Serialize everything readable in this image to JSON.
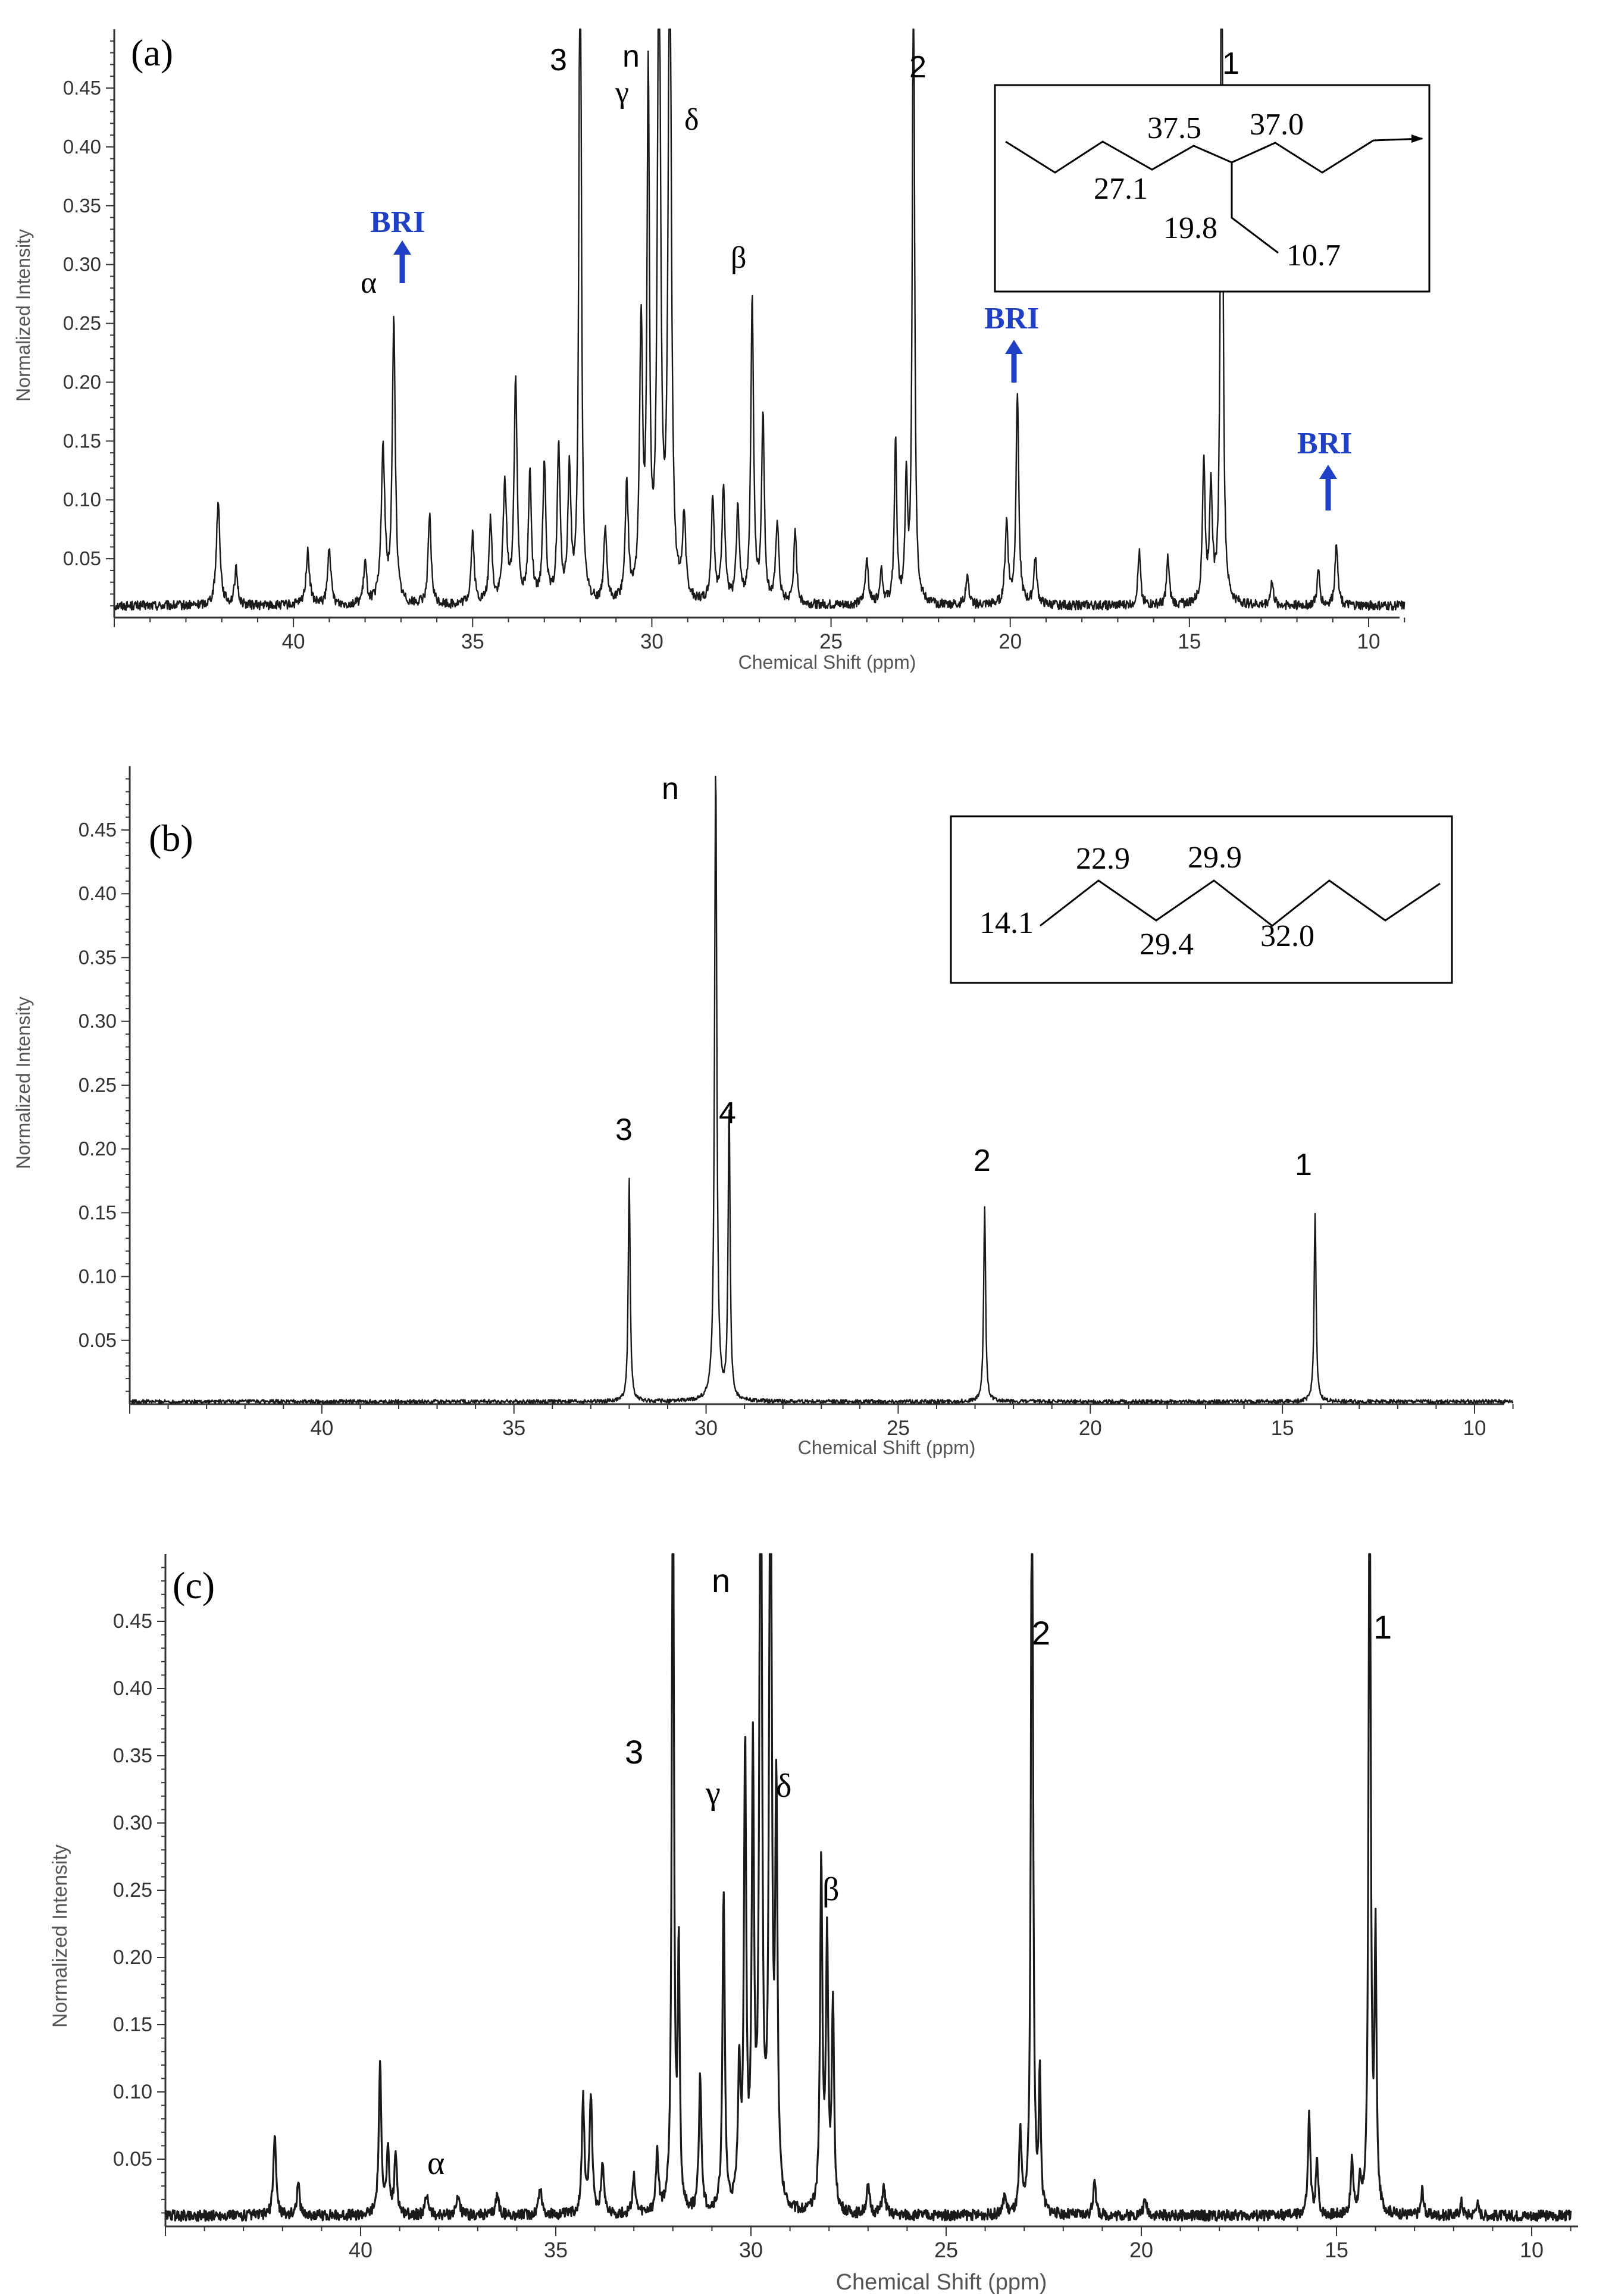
{
  "colors": {
    "spectrum": "#1a1a1a",
    "axis": "#333333",
    "bri": "#1f3fc4",
    "box": "#000000"
  },
  "chart_data": [
    {
      "type": "line",
      "panel": "(a)",
      "xlabel": "Chemical Shift (ppm)",
      "ylabel": "Normalized Intensity",
      "xlim": [
        45,
        9
      ],
      "ylim": [
        0,
        0.5
      ],
      "x_reversed": true,
      "x_ticks": [
        "40",
        "35",
        "30",
        "25",
        "20",
        "15",
        "10"
      ],
      "y_ticks": [
        "0.05",
        "0.10",
        "0.15",
        "0.20",
        "0.25",
        "0.30",
        "0.35",
        "0.40",
        "0.45"
      ],
      "baseline": 0.01,
      "peaks": [
        {
          "x": 42.1,
          "y": 0.088,
          "w": 0.06
        },
        {
          "x": 41.6,
          "y": 0.03,
          "w": 0.05
        },
        {
          "x": 39.6,
          "y": 0.045,
          "w": 0.06
        },
        {
          "x": 39.0,
          "y": 0.05,
          "w": 0.05
        },
        {
          "x": 38.0,
          "y": 0.035,
          "w": 0.05
        },
        {
          "x": 37.5,
          "y": 0.13,
          "w": 0.06
        },
        {
          "x": 37.2,
          "y": 0.24,
          "w": 0.05
        },
        {
          "x": 36.2,
          "y": 0.075,
          "w": 0.05
        },
        {
          "x": 35.0,
          "y": 0.06,
          "w": 0.05
        },
        {
          "x": 34.5,
          "y": 0.07,
          "w": 0.05
        },
        {
          "x": 34.1,
          "y": 0.1,
          "w": 0.06
        },
        {
          "x": 33.8,
          "y": 0.19,
          "w": 0.05
        },
        {
          "x": 33.4,
          "y": 0.11,
          "w": 0.05
        },
        {
          "x": 33.0,
          "y": 0.12,
          "w": 0.05
        },
        {
          "x": 32.6,
          "y": 0.13,
          "w": 0.05
        },
        {
          "x": 32.3,
          "y": 0.11,
          "w": 0.05
        },
        {
          "x": 32.0,
          "y": 0.7,
          "w": 0.035
        },
        {
          "x": 31.3,
          "y": 0.06,
          "w": 0.05
        },
        {
          "x": 30.7,
          "y": 0.1,
          "w": 0.05
        },
        {
          "x": 30.3,
          "y": 0.23,
          "w": 0.05
        },
        {
          "x": 30.1,
          "y": 0.44,
          "w": 0.04
        },
        {
          "x": 29.8,
          "y": 0.6,
          "w": 0.05
        },
        {
          "x": 29.5,
          "y": 0.6,
          "w": 0.05
        },
        {
          "x": 29.1,
          "y": 0.07,
          "w": 0.05
        },
        {
          "x": 28.3,
          "y": 0.09,
          "w": 0.05
        },
        {
          "x": 28.0,
          "y": 0.1,
          "w": 0.05
        },
        {
          "x": 27.6,
          "y": 0.08,
          "w": 0.05
        },
        {
          "x": 27.2,
          "y": 0.26,
          "w": 0.045
        },
        {
          "x": 26.9,
          "y": 0.16,
          "w": 0.045
        },
        {
          "x": 26.5,
          "y": 0.07,
          "w": 0.05
        },
        {
          "x": 26.0,
          "y": 0.06,
          "w": 0.05
        },
        {
          "x": 24.0,
          "y": 0.04,
          "w": 0.05
        },
        {
          "x": 23.6,
          "y": 0.03,
          "w": 0.05
        },
        {
          "x": 23.2,
          "y": 0.14,
          "w": 0.04
        },
        {
          "x": 22.9,
          "y": 0.1,
          "w": 0.04
        },
        {
          "x": 22.7,
          "y": 0.6,
          "w": 0.035
        },
        {
          "x": 21.2,
          "y": 0.025,
          "w": 0.05
        },
        {
          "x": 20.1,
          "y": 0.07,
          "w": 0.05
        },
        {
          "x": 19.8,
          "y": 0.18,
          "w": 0.045
        },
        {
          "x": 19.3,
          "y": 0.04,
          "w": 0.05
        },
        {
          "x": 16.4,
          "y": 0.045,
          "w": 0.045
        },
        {
          "x": 15.6,
          "y": 0.04,
          "w": 0.045
        },
        {
          "x": 14.6,
          "y": 0.12,
          "w": 0.045
        },
        {
          "x": 14.4,
          "y": 0.1,
          "w": 0.045
        },
        {
          "x": 14.1,
          "y": 0.7,
          "w": 0.035
        },
        {
          "x": 12.7,
          "y": 0.02,
          "w": 0.05
        },
        {
          "x": 11.4,
          "y": 0.03,
          "w": 0.045
        },
        {
          "x": 10.9,
          "y": 0.055,
          "w": 0.045
        }
      ],
      "annotations": [
        {
          "text": "(a)",
          "kind": "panel"
        },
        {
          "text": "3",
          "kind": "peak",
          "x": 32.6,
          "y": 0.468
        },
        {
          "text": "n",
          "kind": "peak",
          "x": 30.1,
          "y": 0.468
        },
        {
          "text": "γ",
          "kind": "greek",
          "x": 30.5,
          "y": 0.437
        },
        {
          "text": "δ",
          "kind": "greek",
          "x": 28.7,
          "y": 0.415
        },
        {
          "text": "2",
          "kind": "peak",
          "x": 22.4,
          "y": 0.455
        },
        {
          "text": "1",
          "kind": "peak",
          "x": 13.6,
          "y": 0.462
        },
        {
          "text": "α",
          "kind": "greek",
          "x": 38.5,
          "y": 0.265
        },
        {
          "text": "β",
          "kind": "greek",
          "x": 28.0,
          "y": 0.29
        },
        {
          "text": "BRI",
          "kind": "bri",
          "x": 37.2,
          "y": 0.325,
          "arrow_to": 0.28
        },
        {
          "text": "BRI",
          "kind": "bri",
          "x": 19.8,
          "y": 0.252,
          "arrow_to": 0.195
        },
        {
          "text": "BRI",
          "kind": "bri",
          "x": 10.9,
          "y": 0.135,
          "arrow_to": 0.088
        }
      ],
      "structure_labels": [
        "37.5",
        "37.0",
        "27.1",
        "19.8",
        "10.7"
      ]
    },
    {
      "type": "line",
      "panel": "(b)",
      "xlabel": "Chemical Shift (ppm)",
      "ylabel": "Normalized Intensity",
      "xlim": [
        45,
        9
      ],
      "ylim": [
        0,
        0.5
      ],
      "x_reversed": true,
      "x_ticks": [
        "40",
        "35",
        "30",
        "25",
        "20",
        "15",
        "10"
      ],
      "y_ticks": [
        "0.05",
        "0.10",
        "0.15",
        "0.20",
        "0.25",
        "0.30",
        "0.35",
        "0.40",
        "0.45"
      ],
      "baseline": 0.002,
      "peaks": [
        {
          "x": 32.0,
          "y": 0.175,
          "w": 0.03
        },
        {
          "x": 29.75,
          "y": 0.5,
          "w": 0.035
        },
        {
          "x": 29.4,
          "y": 0.23,
          "w": 0.03
        },
        {
          "x": 22.75,
          "y": 0.153,
          "w": 0.03
        },
        {
          "x": 14.15,
          "y": 0.148,
          "w": 0.03
        }
      ],
      "annotations": [
        {
          "text": "(b)",
          "kind": "panel"
        },
        {
          "text": "n",
          "kind": "peak",
          "x": 30.7,
          "y": 0.47
        },
        {
          "text": "3",
          "kind": "peak",
          "x": 32.0,
          "y": 0.2
        },
        {
          "text": "4",
          "kind": "peak",
          "x": 29.1,
          "y": 0.215
        },
        {
          "text": "2",
          "kind": "peak",
          "x": 22.75,
          "y": 0.178
        },
        {
          "text": "1",
          "kind": "peak",
          "x": 14.3,
          "y": 0.172
        }
      ],
      "structure_labels": [
        "22.9",
        "29.9",
        "14.1",
        "29.4",
        "32.0"
      ]
    },
    {
      "type": "line",
      "panel": "(c)",
      "xlabel": "Chemical Shift (ppm)",
      "ylabel": "Normalized Intensity",
      "xlim": [
        45,
        9
      ],
      "ylim": [
        0,
        0.5
      ],
      "x_reversed": true,
      "x_ticks": [
        "40",
        "35",
        "30",
        "25",
        "20",
        "15",
        "10"
      ],
      "y_ticks": [
        "0.05",
        "0.10",
        "0.15",
        "0.20",
        "0.25",
        "0.30",
        "0.35",
        "0.40",
        "0.45"
      ],
      "baseline": 0.008,
      "peaks": [
        {
          "x": 42.2,
          "y": 0.062,
          "w": 0.04
        },
        {
          "x": 41.6,
          "y": 0.025,
          "w": 0.04
        },
        {
          "x": 39.5,
          "y": 0.11,
          "w": 0.04
        },
        {
          "x": 39.3,
          "y": 0.045,
          "w": 0.04
        },
        {
          "x": 39.1,
          "y": 0.045,
          "w": 0.04
        },
        {
          "x": 38.3,
          "y": 0.015,
          "w": 0.05
        },
        {
          "x": 37.5,
          "y": 0.015,
          "w": 0.05
        },
        {
          "x": 36.5,
          "y": 0.015,
          "w": 0.05
        },
        {
          "x": 35.4,
          "y": 0.02,
          "w": 0.05
        },
        {
          "x": 34.3,
          "y": 0.085,
          "w": 0.04
        },
        {
          "x": 34.1,
          "y": 0.09,
          "w": 0.04
        },
        {
          "x": 33.8,
          "y": 0.035,
          "w": 0.05
        },
        {
          "x": 33.0,
          "y": 0.03,
          "w": 0.04
        },
        {
          "x": 32.4,
          "y": 0.045,
          "w": 0.04
        },
        {
          "x": 32.0,
          "y": 0.65,
          "w": 0.03
        },
        {
          "x": 31.85,
          "y": 0.19,
          "w": 0.03
        },
        {
          "x": 31.3,
          "y": 0.1,
          "w": 0.04
        },
        {
          "x": 30.7,
          "y": 0.24,
          "w": 0.035
        },
        {
          "x": 30.3,
          "y": 0.1,
          "w": 0.04
        },
        {
          "x": 30.15,
          "y": 0.34,
          "w": 0.035
        },
        {
          "x": 29.95,
          "y": 0.33,
          "w": 0.035
        },
        {
          "x": 29.75,
          "y": 0.7,
          "w": 0.035
        },
        {
          "x": 29.5,
          "y": 0.7,
          "w": 0.035
        },
        {
          "x": 29.35,
          "y": 0.3,
          "w": 0.035
        },
        {
          "x": 28.2,
          "y": 0.26,
          "w": 0.035
        },
        {
          "x": 28.05,
          "y": 0.2,
          "w": 0.035
        },
        {
          "x": 27.9,
          "y": 0.15,
          "w": 0.035
        },
        {
          "x": 27.0,
          "y": 0.02,
          "w": 0.05
        },
        {
          "x": 26.6,
          "y": 0.02,
          "w": 0.05
        },
        {
          "x": 23.5,
          "y": 0.015,
          "w": 0.04
        },
        {
          "x": 23.1,
          "y": 0.06,
          "w": 0.035
        },
        {
          "x": 22.8,
          "y": 0.65,
          "w": 0.03
        },
        {
          "x": 22.6,
          "y": 0.1,
          "w": 0.03
        },
        {
          "x": 21.2,
          "y": 0.03,
          "w": 0.035
        },
        {
          "x": 19.9,
          "y": 0.01,
          "w": 0.06
        },
        {
          "x": 15.7,
          "y": 0.075,
          "w": 0.035
        },
        {
          "x": 15.5,
          "y": 0.04,
          "w": 0.035
        },
        {
          "x": 14.6,
          "y": 0.04,
          "w": 0.035
        },
        {
          "x": 14.4,
          "y": 0.02,
          "w": 0.035
        },
        {
          "x": 14.15,
          "y": 0.65,
          "w": 0.03
        },
        {
          "x": 14.0,
          "y": 0.2,
          "w": 0.03
        },
        {
          "x": 12.8,
          "y": 0.02,
          "w": 0.035
        },
        {
          "x": 11.8,
          "y": 0.01,
          "w": 0.04
        },
        {
          "x": 11.4,
          "y": 0.01,
          "w": 0.04
        }
      ],
      "annotations": [
        {
          "text": "(c)",
          "kind": "panel"
        },
        {
          "text": "n",
          "kind": "peak",
          "x": 30.4,
          "y": 0.48
        },
        {
          "text": "3",
          "kind": "peak",
          "x": 32.7,
          "y": 0.355
        },
        {
          "text": "γ",
          "kind": "greek",
          "x": 30.6,
          "y": 0.325
        },
        {
          "text": "δ",
          "kind": "greek",
          "x": 29.0,
          "y": 0.325
        },
        {
          "text": "β",
          "kind": "greek",
          "x": 27.5,
          "y": 0.255
        },
        {
          "text": "2",
          "kind": "peak",
          "x": 22.3,
          "y": 0.44
        },
        {
          "text": "1",
          "kind": "peak",
          "x": 13.6,
          "y": 0.445
        },
        {
          "text": "α",
          "kind": "greek",
          "x": 37.5,
          "y": 0.028
        }
      ]
    }
  ]
}
